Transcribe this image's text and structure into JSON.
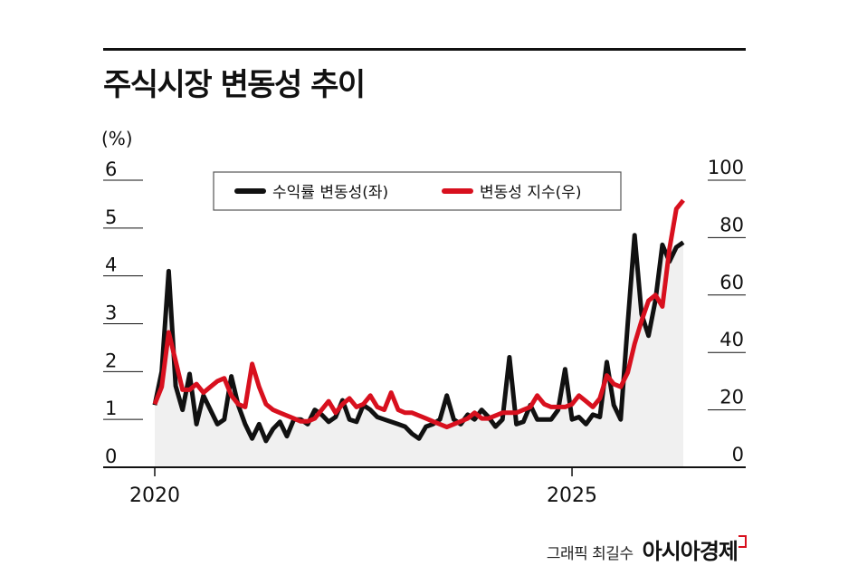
{
  "title": "주식시장 변동성 추이",
  "credit": {
    "label": "그래픽 최길수",
    "brand": "아시아경제"
  },
  "colors": {
    "series1": "#111111",
    "series2": "#d8101e",
    "area": "#f0f0f0",
    "grid": "#111111"
  },
  "chart_data": {
    "type": "line",
    "yunit_left": "(%)",
    "yticks_left": [
      "0",
      "1",
      "2",
      "3",
      "4",
      "5",
      "6"
    ],
    "ylim_left": [
      0,
      6
    ],
    "yticks_right": [
      "0",
      "20",
      "40",
      "60",
      "80",
      "100"
    ],
    "ylim_right": [
      0,
      100
    ],
    "x_range": [
      2020,
      2026.42
    ],
    "xticks": [
      {
        "label": "2020",
        "value": 2020
      },
      {
        "label": "2025",
        "value": 2025
      }
    ],
    "grid": true,
    "legend": "top",
    "series": [
      {
        "name": "수익률 변동성(좌)",
        "axis": "left",
        "x": [
          2020.0,
          2020.083,
          2020.167,
          2020.25,
          2020.333,
          2020.417,
          2020.5,
          2020.583,
          2020.667,
          2020.75,
          2020.833,
          2020.917,
          2021.0,
          2021.083,
          2021.167,
          2021.25,
          2021.333,
          2021.417,
          2021.5,
          2021.583,
          2021.667,
          2021.75,
          2021.833,
          2021.917,
          2022.0,
          2022.083,
          2022.167,
          2022.25,
          2022.333,
          2022.417,
          2022.5,
          2022.583,
          2022.667,
          2022.75,
          2022.833,
          2022.917,
          2023.0,
          2023.083,
          2023.167,
          2023.25,
          2023.333,
          2023.417,
          2023.5,
          2023.583,
          2023.667,
          2023.75,
          2023.833,
          2023.917,
          2024.0,
          2024.083,
          2024.167,
          2024.25,
          2024.333,
          2024.417,
          2024.5,
          2024.583,
          2024.667,
          2024.75,
          2024.833,
          2024.917,
          2025.0,
          2025.083,
          2025.167,
          2025.25,
          2025.333,
          2025.417,
          2025.5,
          2025.583,
          2025.667,
          2025.75,
          2025.833,
          2025.917,
          2026.0,
          2026.083,
          2026.167,
          2026.25,
          2026.333
        ],
        "values": [
          1.3,
          2.0,
          4.1,
          1.7,
          1.2,
          1.95,
          0.9,
          1.5,
          1.2,
          0.9,
          1.0,
          1.9,
          1.3,
          0.9,
          0.6,
          0.9,
          0.55,
          0.8,
          0.95,
          0.65,
          1.0,
          1.0,
          0.9,
          1.2,
          1.1,
          0.95,
          1.05,
          1.4,
          1.0,
          0.95,
          1.3,
          1.2,
          1.05,
          1.0,
          0.95,
          0.9,
          0.85,
          0.7,
          0.6,
          0.85,
          0.9,
          1.0,
          1.5,
          1.0,
          0.9,
          1.1,
          1.0,
          1.2,
          1.05,
          0.85,
          1.0,
          2.3,
          0.9,
          0.95,
          1.3,
          1.0,
          1.0,
          1.0,
          1.2,
          2.05,
          1.0,
          1.05,
          0.9,
          1.1,
          1.05,
          2.2,
          1.3,
          1.0,
          3.0,
          4.85,
          3.2,
          2.75,
          3.5,
          4.65,
          4.3,
          4.6,
          4.7
        ]
      },
      {
        "name": "변동성 지수(우)",
        "axis": "right",
        "x": [
          2020.0,
          2020.083,
          2020.167,
          2020.25,
          2020.333,
          2020.417,
          2020.5,
          2020.583,
          2020.667,
          2020.75,
          2020.833,
          2020.917,
          2021.0,
          2021.083,
          2021.167,
          2021.25,
          2021.333,
          2021.417,
          2021.5,
          2021.583,
          2021.667,
          2021.75,
          2021.833,
          2021.917,
          2022.0,
          2022.083,
          2022.167,
          2022.25,
          2022.333,
          2022.417,
          2022.5,
          2022.583,
          2022.667,
          2022.75,
          2022.833,
          2022.917,
          2023.0,
          2023.083,
          2023.167,
          2023.25,
          2023.333,
          2023.417,
          2023.5,
          2023.583,
          2023.667,
          2023.75,
          2023.833,
          2023.917,
          2024.0,
          2024.083,
          2024.167,
          2024.25,
          2024.333,
          2024.417,
          2024.5,
          2024.583,
          2024.667,
          2024.75,
          2024.833,
          2024.917,
          2025.0,
          2025.083,
          2025.167,
          2025.25,
          2025.333,
          2025.417,
          2025.5,
          2025.583,
          2025.667,
          2025.75,
          2025.833,
          2025.917,
          2026.0,
          2026.083,
          2026.167,
          2026.25,
          2026.333
        ],
        "values": [
          22,
          28,
          47,
          37,
          27,
          27,
          29,
          26,
          28,
          30,
          31,
          25,
          22,
          21,
          36,
          28,
          22,
          20,
          19,
          18,
          17,
          16,
          16,
          17,
          20,
          23,
          19,
          22,
          24,
          21,
          22,
          25,
          21,
          20,
          26,
          20,
          19,
          19,
          18,
          17,
          16,
          15,
          14,
          15,
          16,
          17,
          19,
          17,
          17,
          18,
          19,
          19,
          19,
          20,
          21,
          25,
          22,
          21,
          21,
          21,
          22,
          25,
          23,
          21,
          24,
          32,
          29,
          28,
          33,
          43,
          51,
          58,
          60,
          56,
          76,
          90,
          93
        ]
      }
    ]
  }
}
